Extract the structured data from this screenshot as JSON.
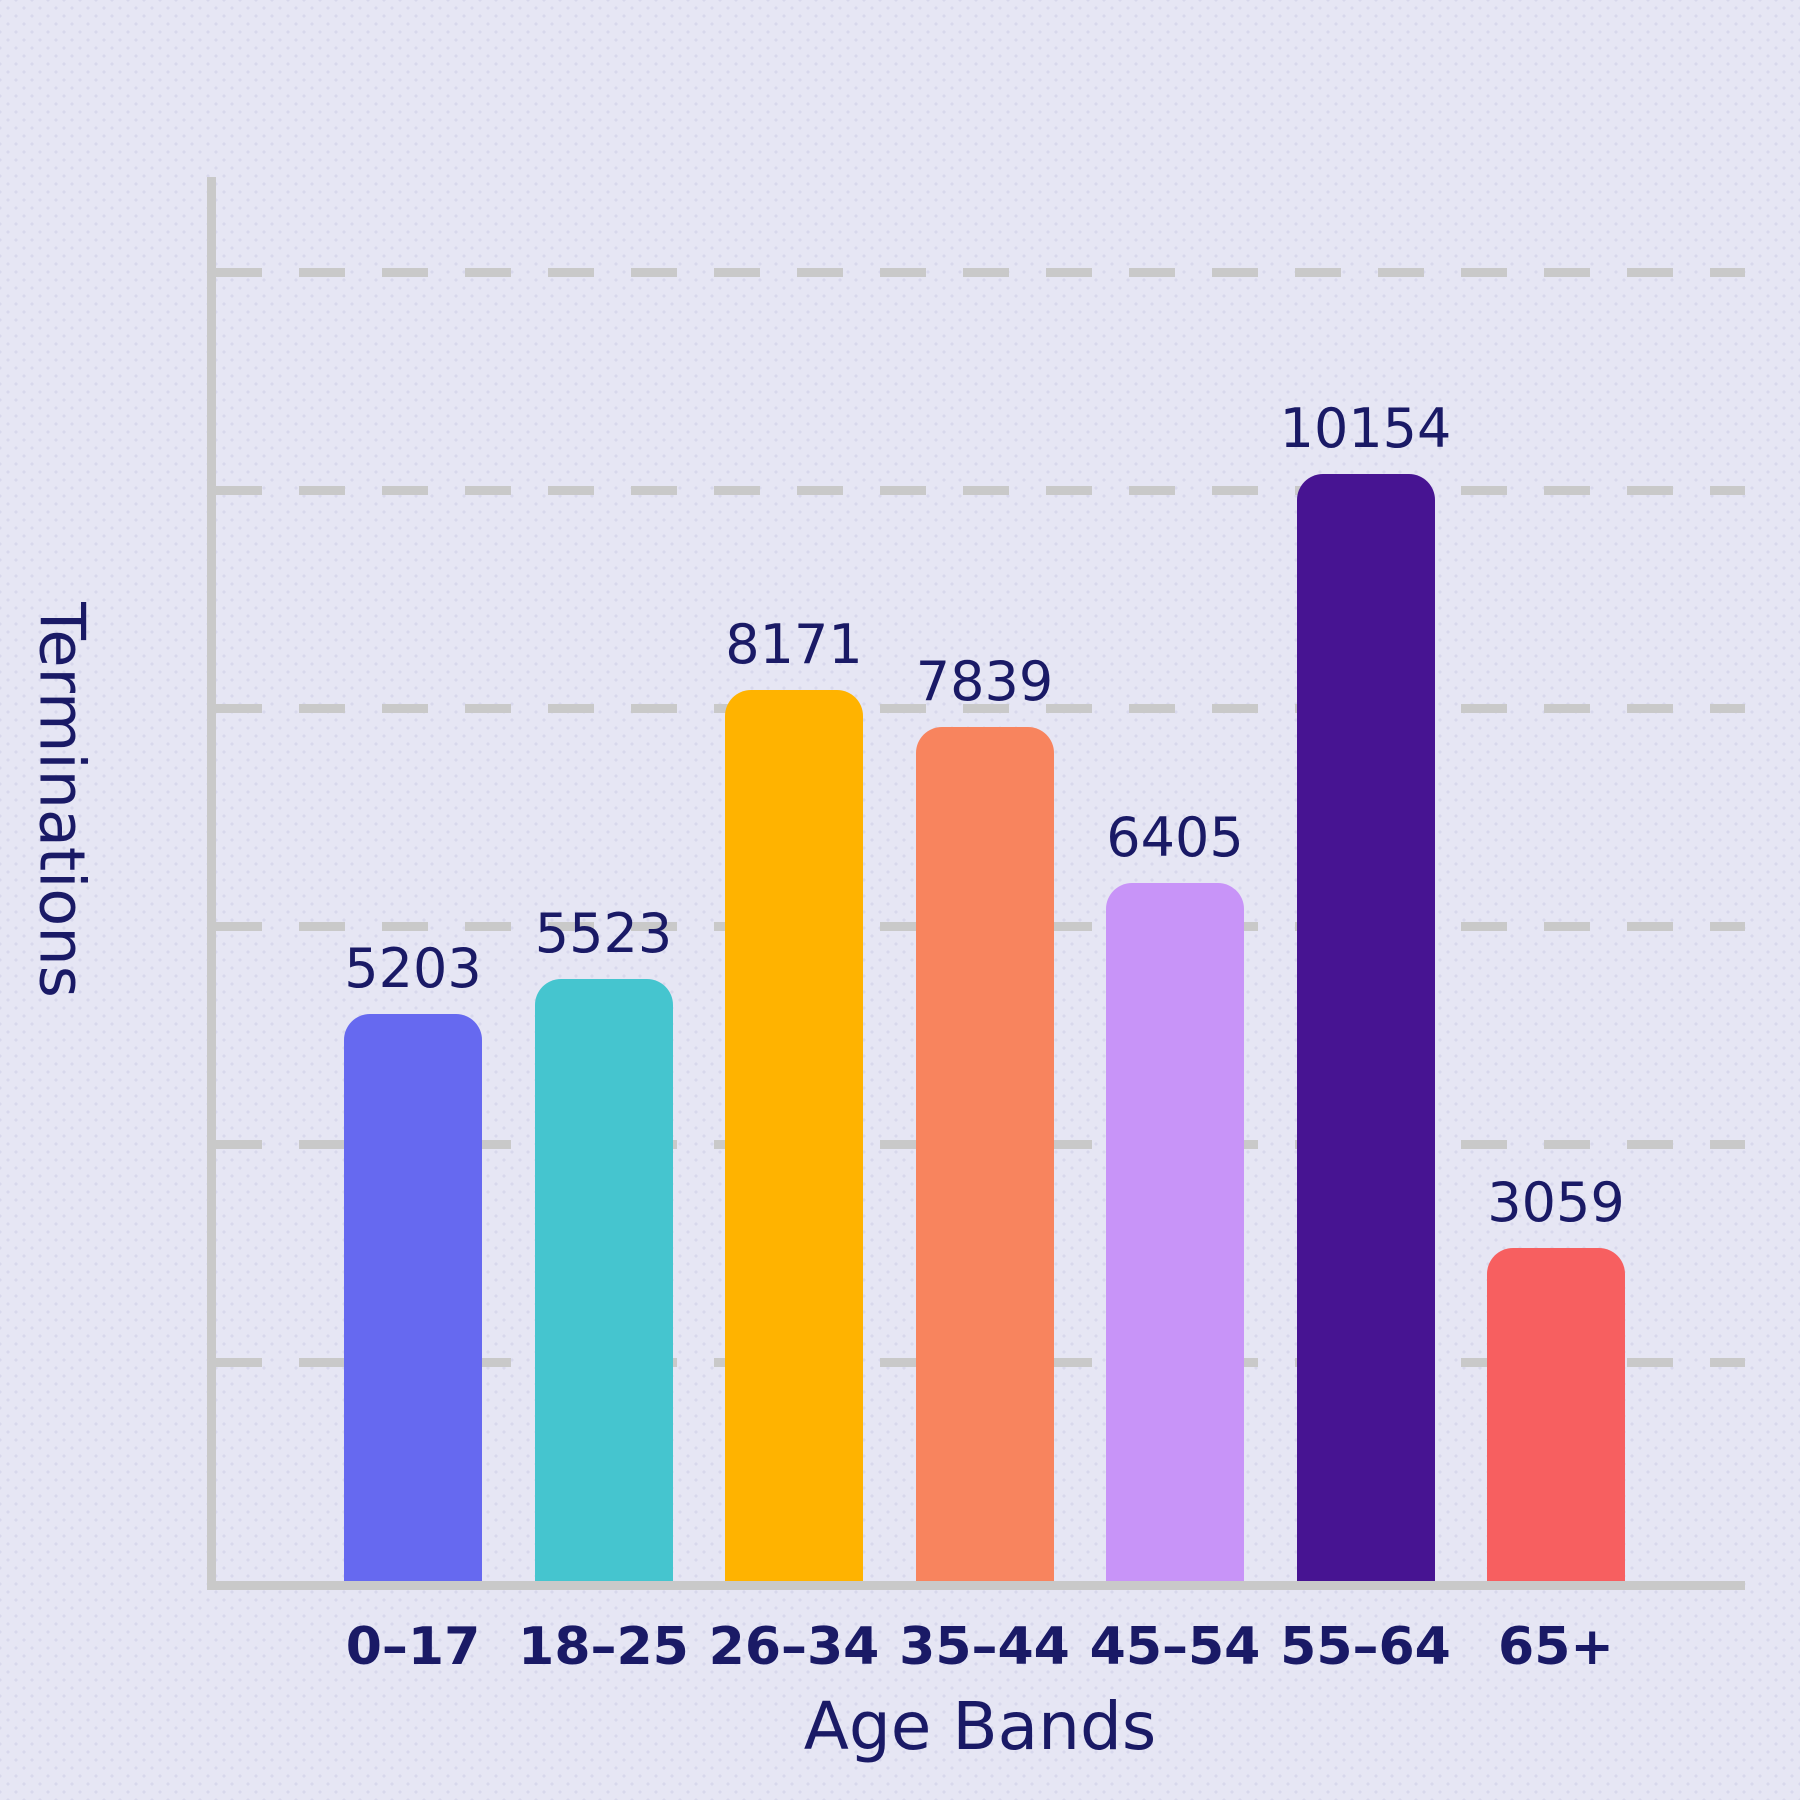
{
  "chart_data": {
    "type": "bar",
    "title": "",
    "xlabel": "Age Bands",
    "ylabel": "Terminations",
    "categories": [
      "0–17",
      "18–25",
      "26–34",
      "35–44",
      "45–54",
      "55–64",
      "65+"
    ],
    "values": [
      5203,
      5523,
      8171,
      7839,
      6405,
      10154,
      3059
    ],
    "value_labels": [
      "5203",
      "5523",
      "8171",
      "7839",
      "6405",
      "10154",
      "3059"
    ],
    "bar_colors": [
      "#6669F0",
      "#45C5CF",
      "#FFB300",
      "#F8845E",
      "#C894F8",
      "#471492",
      "#F75F60"
    ],
    "ylim": [
      0,
      13000
    ],
    "ytick_interval": 2000,
    "gridline_values": [
      2000,
      4000,
      6000,
      8000,
      10000,
      12000
    ],
    "grid_style": "dashed-horizontal",
    "y_tick_labels_shown": false,
    "legend": "none",
    "colors": {
      "background": "#E6E6F4",
      "dot_pattern": "#D8D8EC",
      "axis": "#C9C9C9",
      "gridline": "#C9C9C9",
      "text": "#1A1A66"
    }
  }
}
